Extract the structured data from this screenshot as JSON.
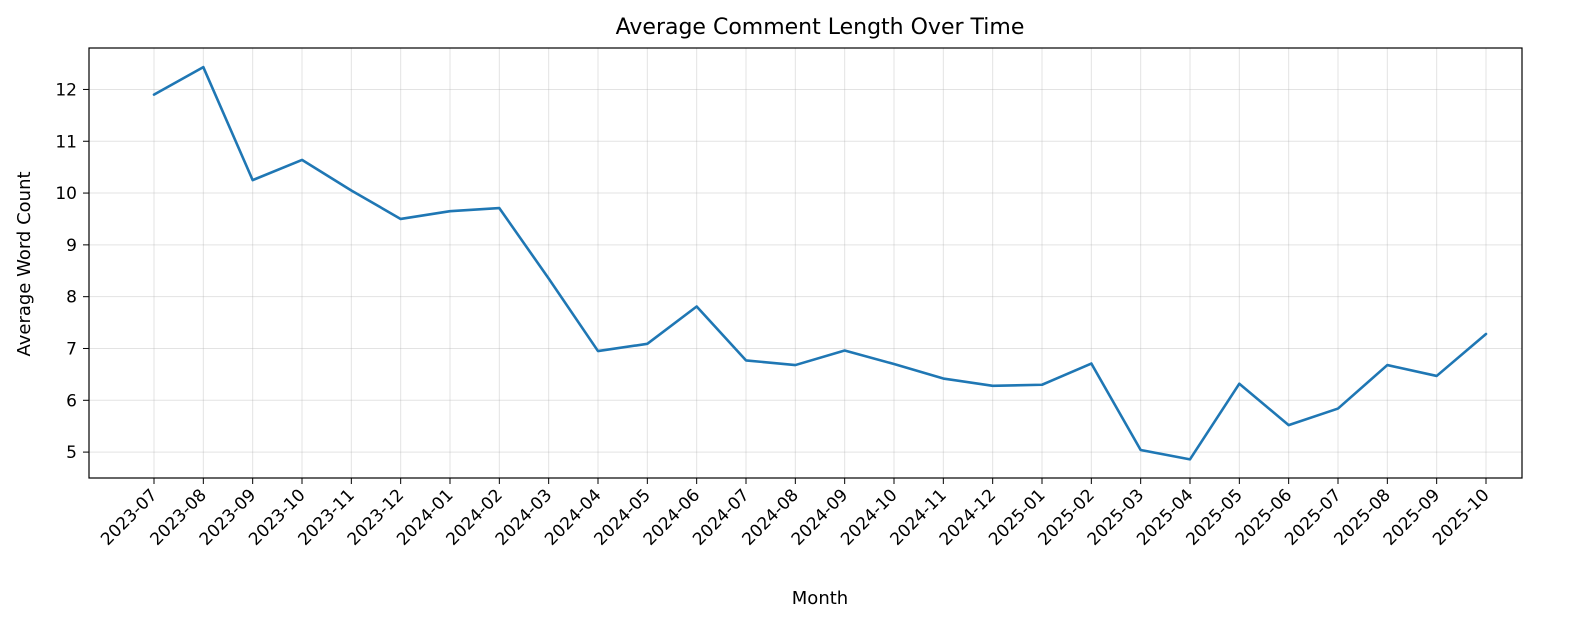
{
  "chart_data": {
    "type": "line",
    "title": "Average Comment Length Over Time",
    "xlabel": "Month",
    "ylabel": "Average Word Count",
    "categories": [
      "2023-07",
      "2023-08",
      "2023-09",
      "2023-10",
      "2023-11",
      "2023-12",
      "2024-01",
      "2024-02",
      "2024-03",
      "2024-04",
      "2024-05",
      "2024-06",
      "2024-07",
      "2024-08",
      "2024-09",
      "2024-10",
      "2024-11",
      "2024-12",
      "2025-01",
      "2025-02",
      "2025-03",
      "2025-04",
      "2025-05",
      "2025-06",
      "2025-07",
      "2025-08",
      "2025-09",
      "2025-10"
    ],
    "series": [
      {
        "values": [
          11.9,
          12.43,
          10.25,
          10.64,
          10.05,
          9.5,
          9.65,
          9.71,
          8.35,
          6.95,
          7.09,
          7.81,
          6.77,
          6.68,
          6.96,
          6.7,
          6.42,
          6.28,
          6.3,
          6.71,
          5.04,
          4.86,
          6.32,
          5.52,
          5.84,
          6.68,
          6.47,
          7.28
        ],
        "color": "#1f77b4"
      }
    ],
    "ylim": [
      4.5,
      12.8
    ],
    "yticks": [
      "5",
      "6",
      "7",
      "8",
      "9",
      "10",
      "11",
      "12"
    ],
    "grid": true,
    "legend": "none"
  }
}
